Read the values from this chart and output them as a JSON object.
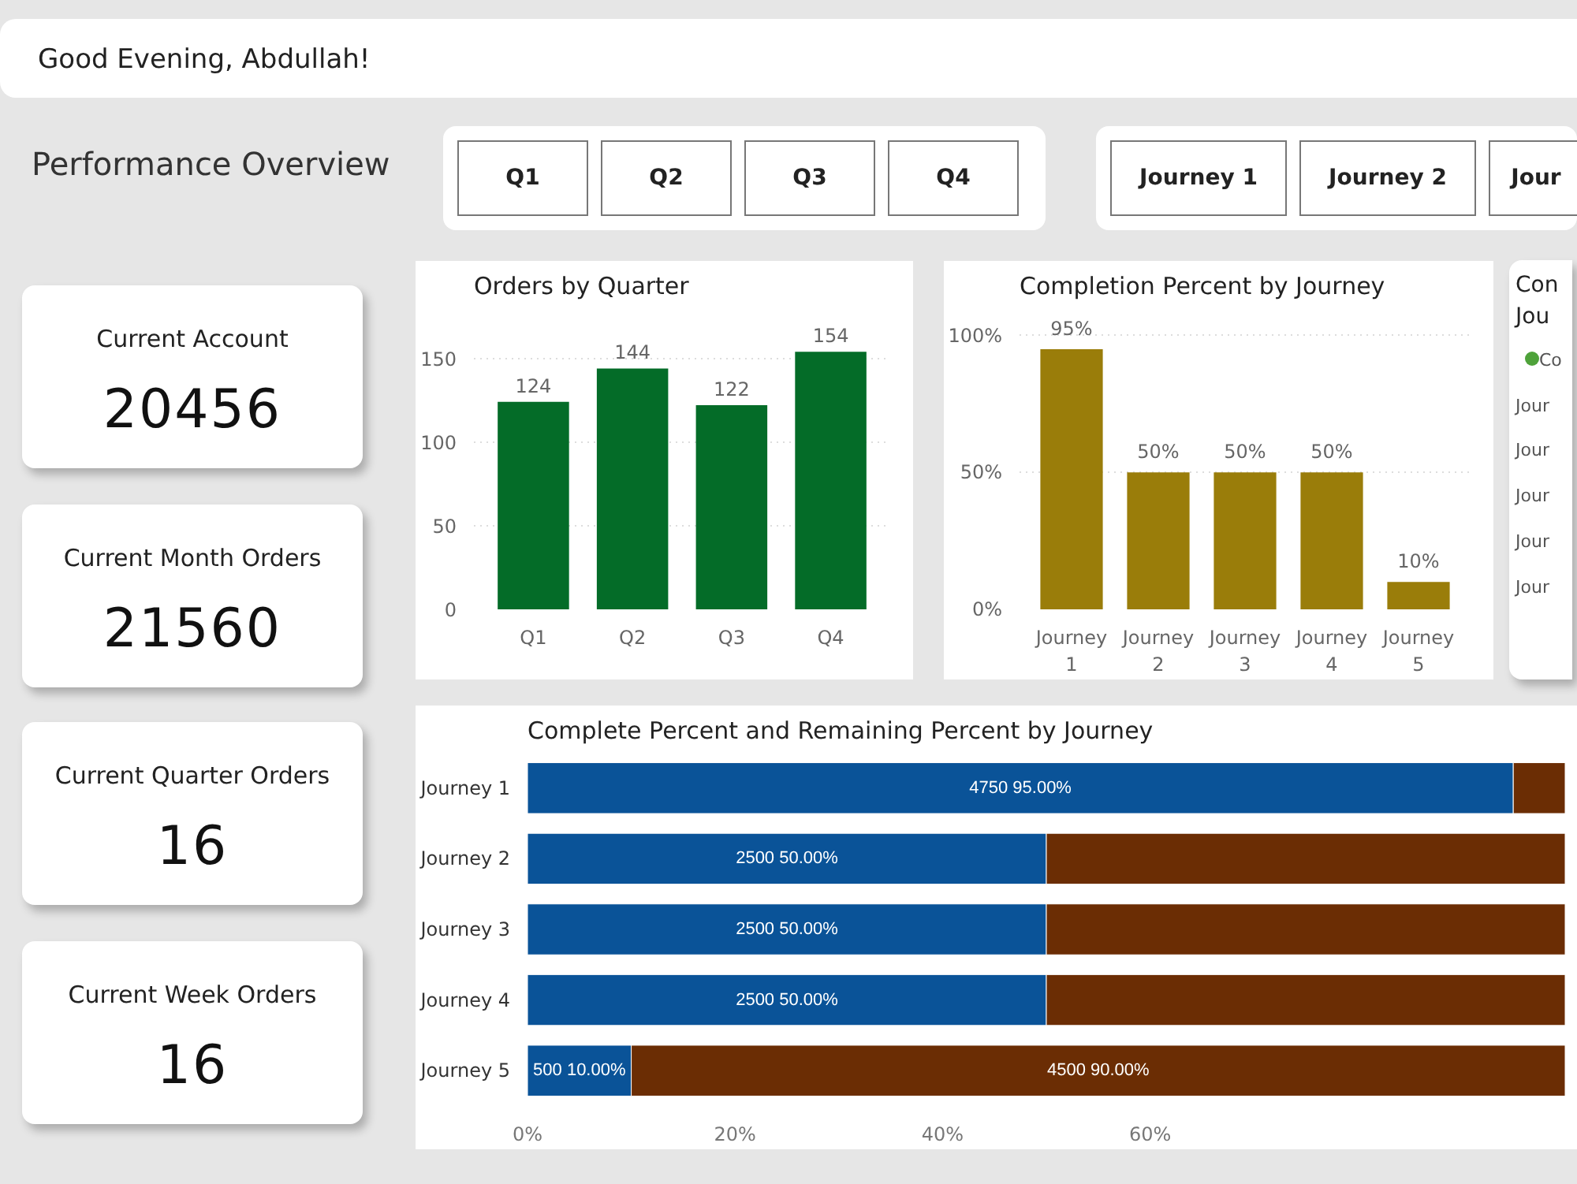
{
  "chart_data": [
    {
      "type": "other",
      "title": "Good Evening, Abdullah!"
    },
    {
      "type": "other",
      "title": "Performance Overview",
      "annotations": [
        "Q1",
        "Q2",
        "Q3",
        "Q4"
      ]
    },
    {
      "type": "other",
      "annotations": [
        "Journey 1",
        "Journey 2",
        "Jour"
      ]
    },
    {
      "type": "other",
      "title": "Current Account",
      "annotations": [
        "20456"
      ]
    },
    {
      "type": "other",
      "title": "Current Month Orders",
      "annotations": [
        "21560"
      ]
    },
    {
      "type": "other",
      "title": "Current Quarter Orders",
      "annotations": [
        "16"
      ]
    },
    {
      "type": "other",
      "title": "Current Week Orders",
      "annotations": [
        "16"
      ]
    },
    {
      "type": "bar",
      "title": "Orders by Quarter",
      "categories": [
        "Q1",
        "Q2",
        "Q3",
        "Q4"
      ],
      "values": [
        124,
        144,
        122,
        154
      ],
      "color": "#046c28",
      "ylim": [
        0,
        180
      ],
      "yticks": [
        0,
        50,
        100,
        150
      ],
      "grid": "y",
      "data_labels": true
    },
    {
      "type": "bar",
      "title": "Completion Percent by Journey",
      "categories": [
        "Journey 1",
        "Journey 2",
        "Journey 3",
        "Journey 4",
        "Journey 5"
      ],
      "values": [
        95,
        50,
        50,
        50,
        10
      ],
      "value_labels": [
        "95%",
        "50%",
        "50%",
        "50%",
        "10%"
      ],
      "color": "#9a7d0a",
      "ylim": [
        0,
        110
      ],
      "yticks": [
        {
          "value": 0,
          "label": "0%"
        },
        {
          "value": 50,
          "label": "50%"
        },
        {
          "value": 100,
          "label": "100%"
        }
      ],
      "grid": "y"
    },
    {
      "type": "other",
      "title": "Con Jou",
      "annotations": [
        "Co",
        "Jour",
        "Jour",
        "Jour",
        "Jour",
        "Jour"
      ]
    },
    {
      "type": "bar",
      "title": "Complete Percent and Remaining Percent by Journey",
      "orientation": "horizontal",
      "stacked": true,
      "categories": [
        "Journey 1",
        "Journey 2",
        "Journey 3",
        "Journey 4",
        "Journey 5"
      ],
      "series": [
        {
          "color": "#0a5398",
          "values": [
            95,
            50,
            50,
            50,
            10
          ],
          "value_labels": [
            "4750 95.00%",
            "2500 50.00%",
            "2500 50.00%",
            "2500 50.00%",
            "500 10.00%"
          ]
        },
        {
          "color": "#6b2d04",
          "values": [
            5,
            50,
            50,
            50,
            90
          ],
          "value_labels": [
            null,
            null,
            null,
            null,
            "4500 90.00%"
          ]
        }
      ],
      "xlim": [
        0,
        100
      ],
      "xticks": [
        {
          "value": 0,
          "label": "0%"
        },
        {
          "value": 20,
          "label": "20%"
        },
        {
          "value": 40,
          "label": "40%"
        },
        {
          "value": 60,
          "label": "60%"
        }
      ]
    }
  ]
}
